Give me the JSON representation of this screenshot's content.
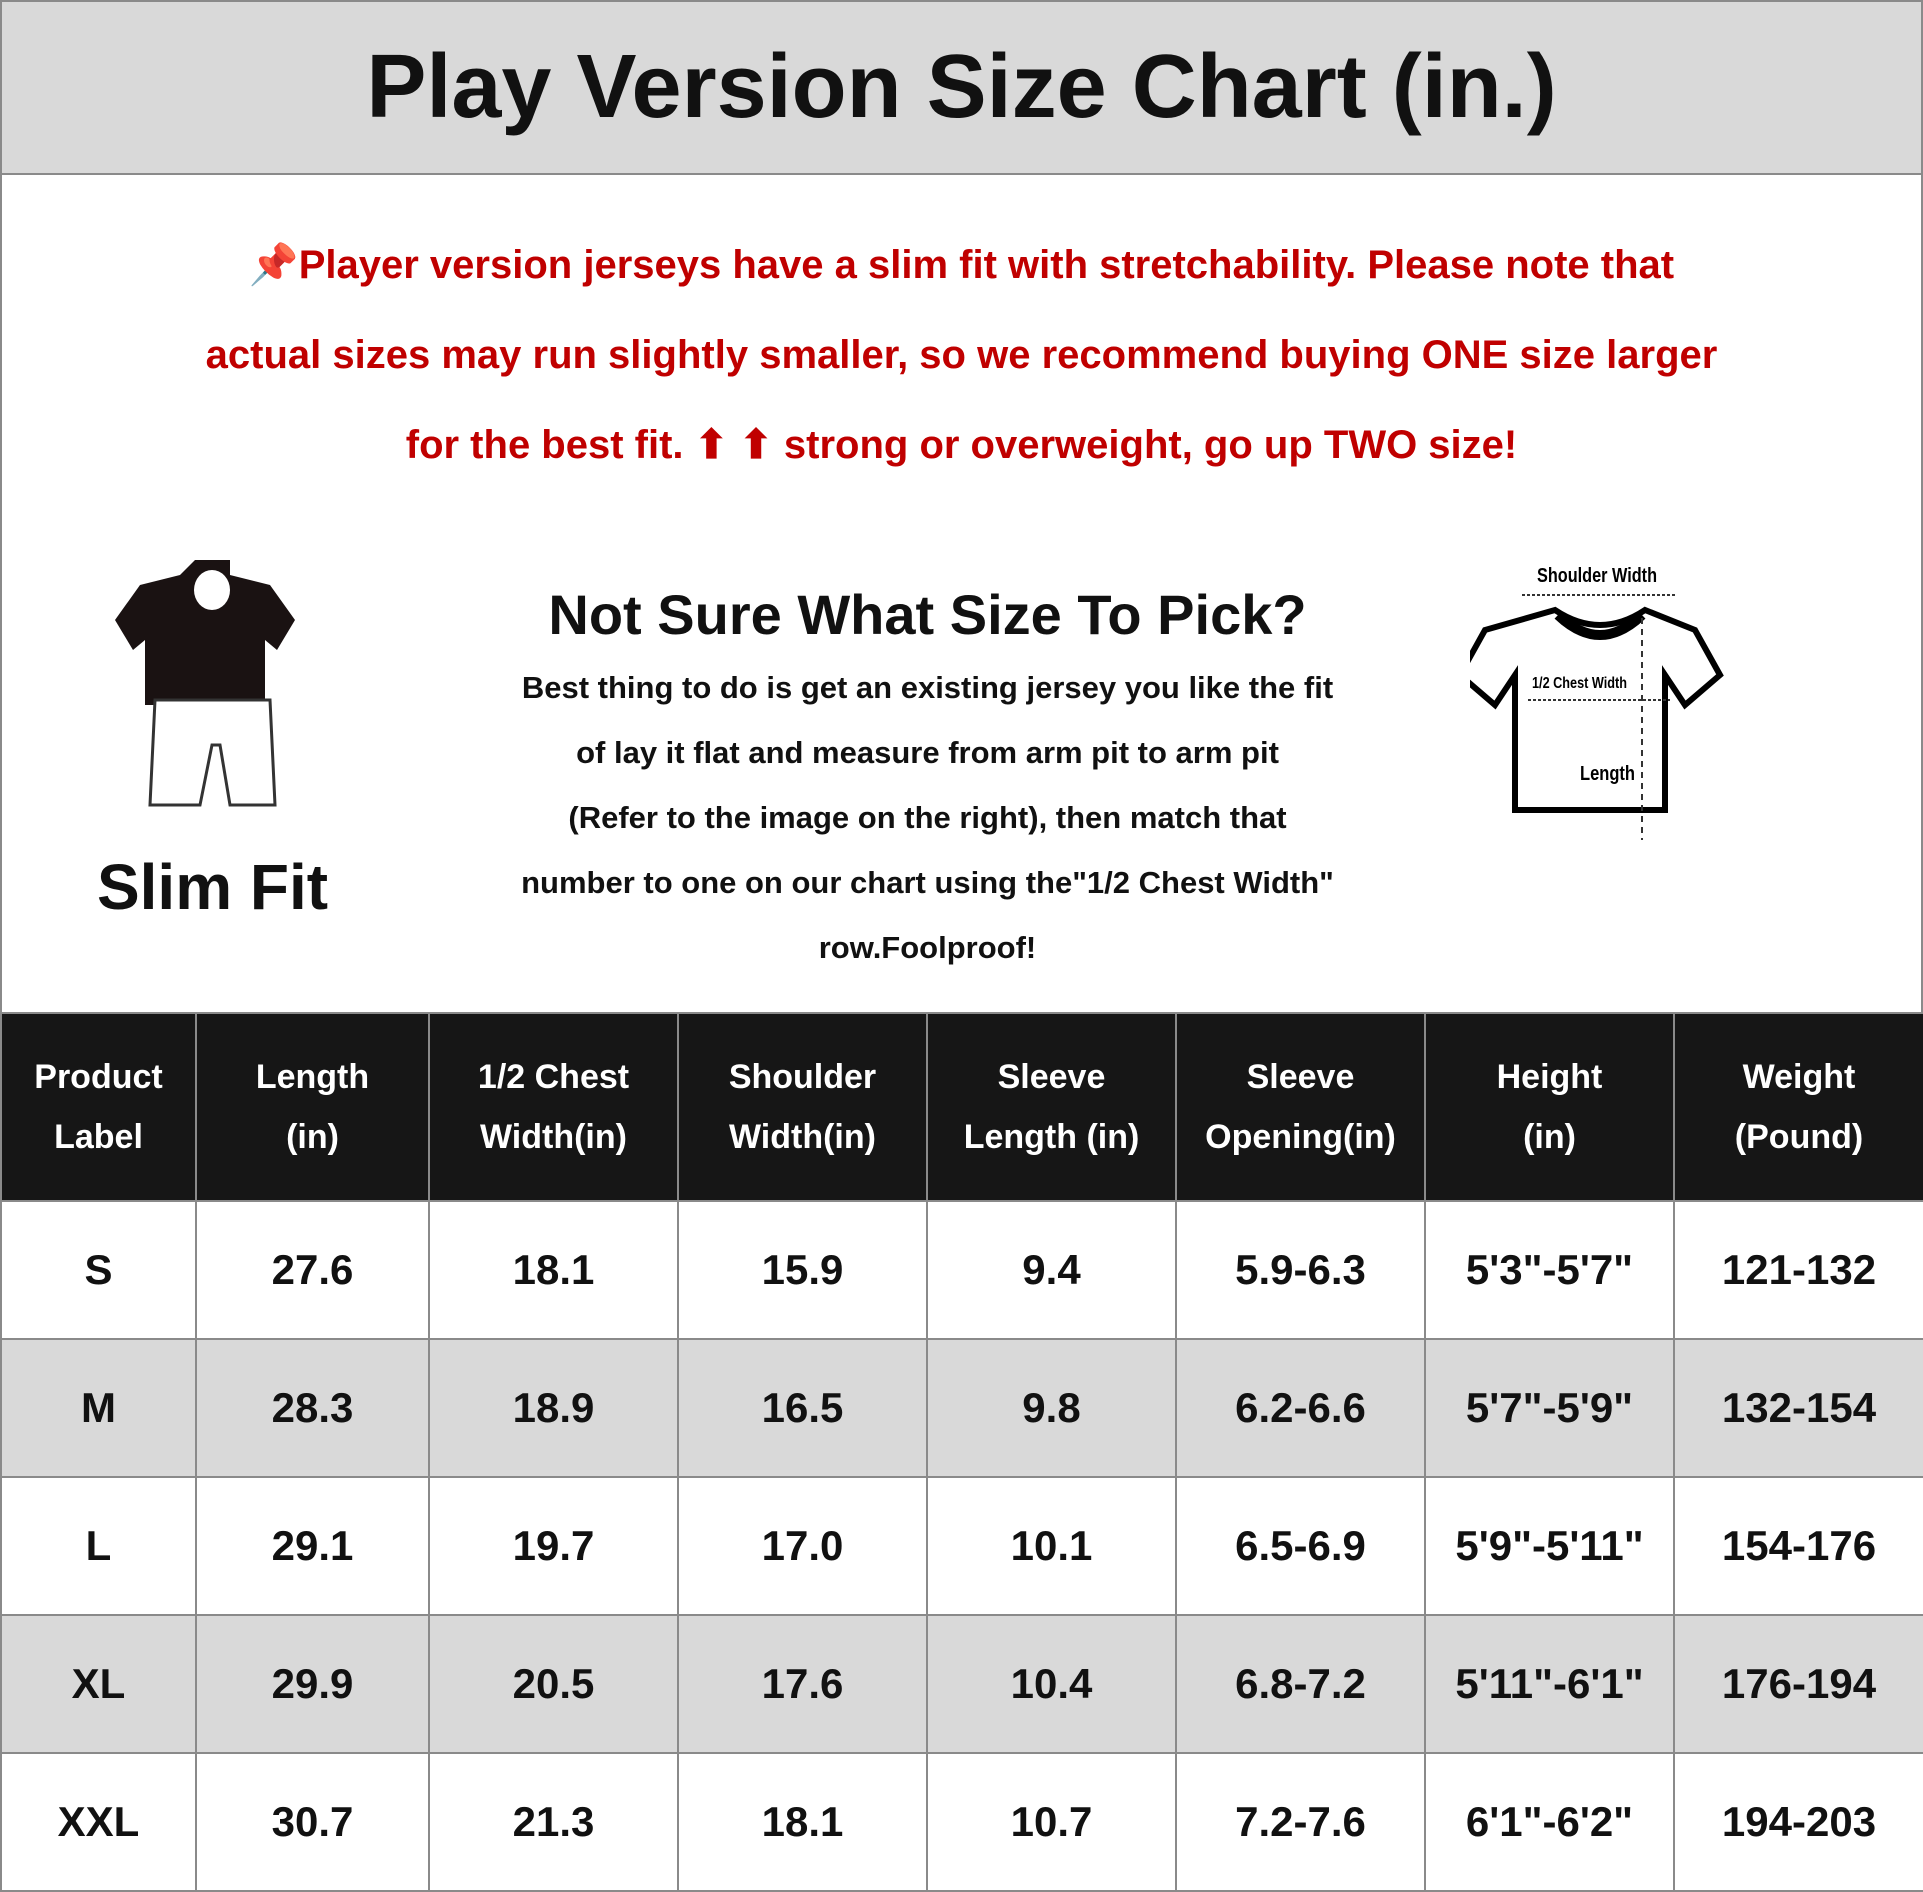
{
  "title": "Play Version Size Chart (in.)",
  "notice": {
    "icon": "pushpin-icon",
    "lines": [
      "Player version jerseys have a slim fit with stretchability. Please note that",
      "actual sizes may run slightly smaller, so we recommend buying ONE size larger",
      "for the best fit. ⬆ ⬆ strong or overweight, go up TWO size!"
    ],
    "color": "#c00000"
  },
  "slim_fit": {
    "label": "Slim Fit"
  },
  "help": {
    "title": "Not Sure What Size To Pick?",
    "lines": [
      "Best thing to do is get an existing jersey you like the fit",
      "of lay it flat and measure from arm pit to arm pit",
      "(Refer to the image on the right), then match that",
      "number to one on our chart using the\"1/2 Chest Width\"",
      "row.Foolproof!"
    ]
  },
  "diagram": {
    "shoulder": "Shoulder Width",
    "chest": "1/2 Chest Width",
    "length": "Length"
  },
  "table": {
    "headers": [
      [
        "Product",
        "Label"
      ],
      [
        "Length",
        "(in)"
      ],
      [
        "1/2 Chest",
        "Width(in)"
      ],
      [
        "Shoulder",
        "Width(in)"
      ],
      [
        "Sleeve",
        "Length (in)"
      ],
      [
        "Sleeve",
        "Opening(in)"
      ],
      [
        "Height",
        "(in)"
      ],
      [
        "Weight",
        "(Pound)"
      ]
    ],
    "rows": [
      [
        "S",
        "27.6",
        "18.1",
        "15.9",
        "9.4",
        "5.9-6.3",
        "5'3\"-5'7\"",
        "121-132"
      ],
      [
        "M",
        "28.3",
        "18.9",
        "16.5",
        "9.8",
        "6.2-6.6",
        "5'7\"-5'9\"",
        "132-154"
      ],
      [
        "L",
        "29.1",
        "19.7",
        "17.0",
        "10.1",
        "6.5-6.9",
        "5'9\"-5'11\"",
        "154-176"
      ],
      [
        "XL",
        "29.9",
        "20.5",
        "17.6",
        "10.4",
        "6.8-7.2",
        "5'11\"-6'1\"",
        "176-194"
      ],
      [
        "XXL",
        "30.7",
        "21.3",
        "18.1",
        "10.7",
        "7.2-7.6",
        "6'1\"-6'2\"",
        "194-203"
      ]
    ]
  }
}
